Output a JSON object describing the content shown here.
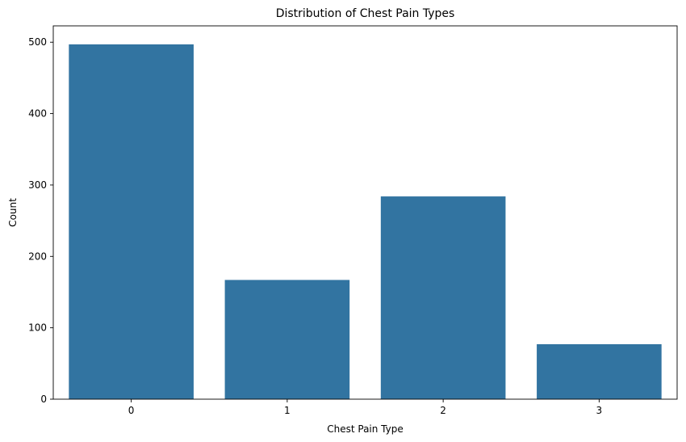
{
  "chart_data": {
    "type": "bar",
    "title": "Distribution of Chest Pain Types",
    "xlabel": "Chest Pain Type",
    "ylabel": "Count",
    "categories": [
      "0",
      "1",
      "2",
      "3"
    ],
    "values": [
      497,
      167,
      284,
      77
    ],
    "ylim": [
      0,
      522.9
    ],
    "yticks": [
      0,
      100,
      200,
      300,
      400,
      500
    ],
    "bar_color": "#3274a1",
    "grid": false
  }
}
